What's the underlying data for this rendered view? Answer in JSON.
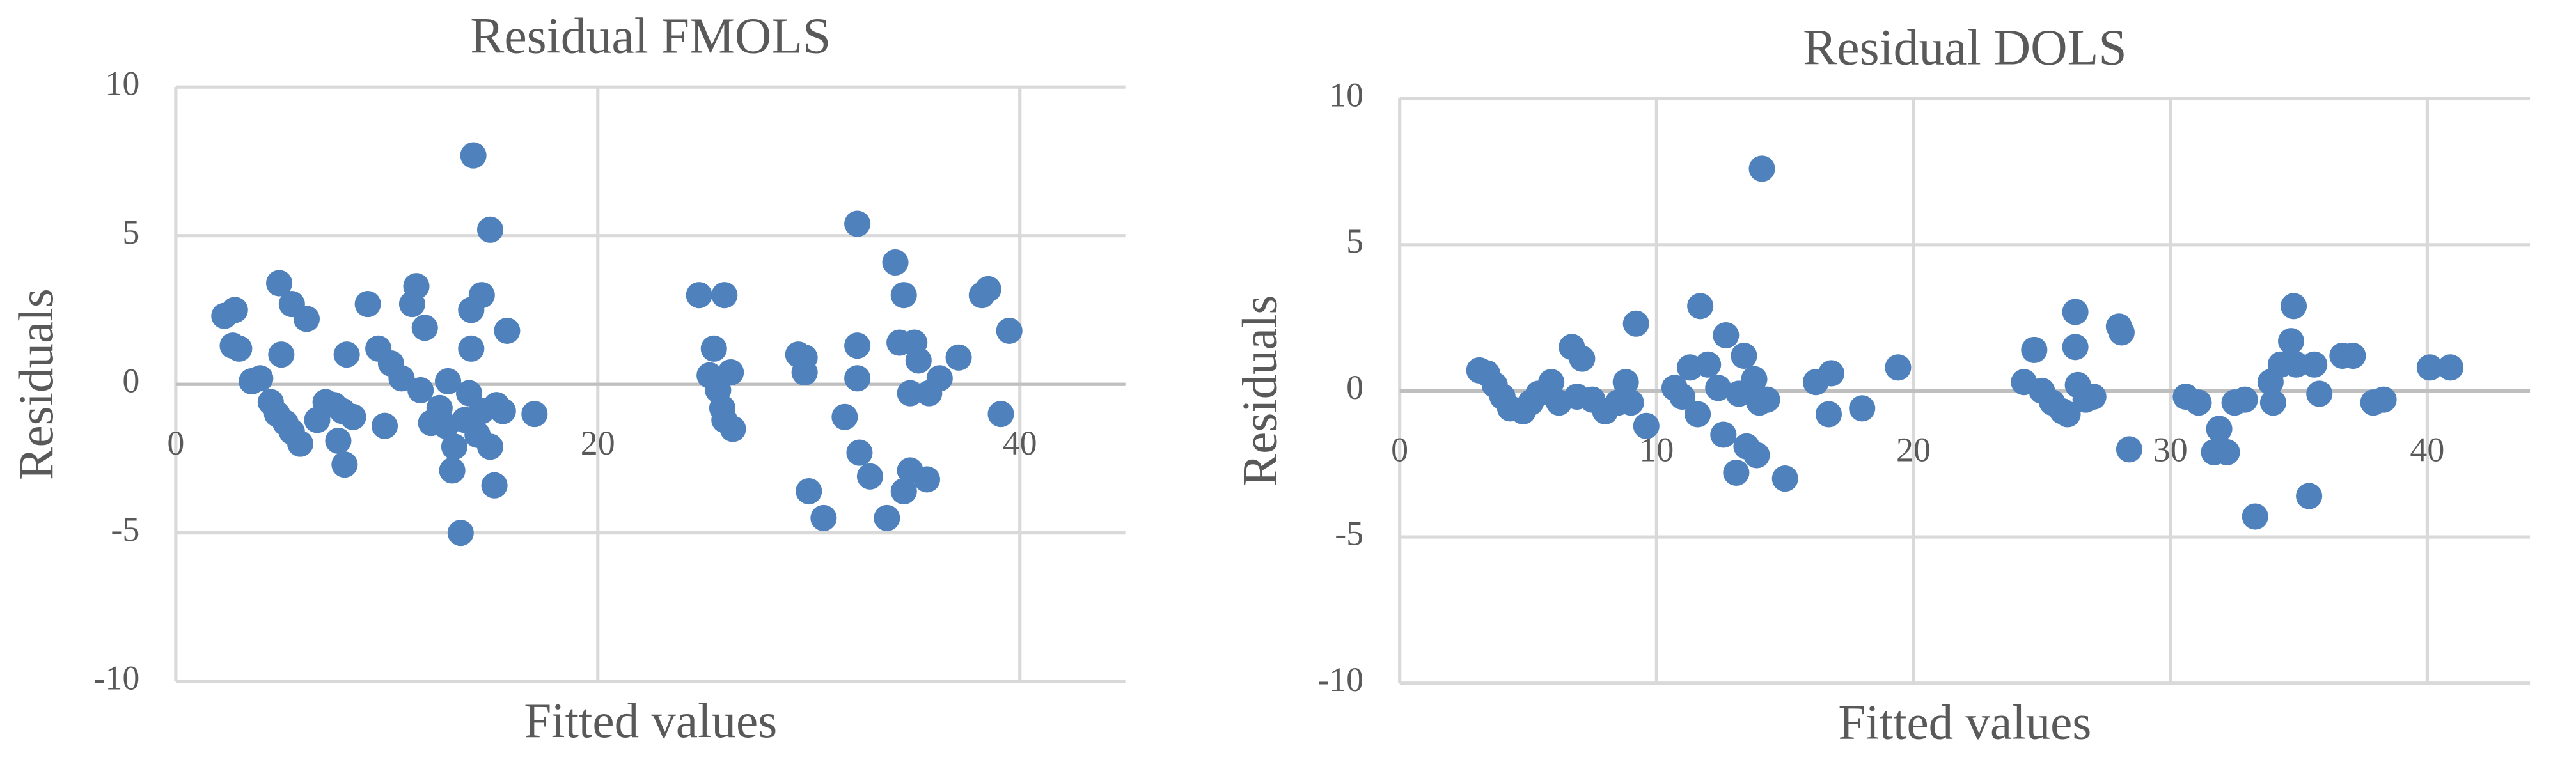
{
  "chart_data": [
    {
      "type": "scatter",
      "title": "Residual FMOLS",
      "xlabel": "Fitted values",
      "ylabel": "Residuals",
      "color": "#4f81bd",
      "xlim": [
        0,
        45
      ],
      "xticks": [
        0,
        20,
        40
      ],
      "ylim": [
        -10,
        10
      ],
      "yticks": [
        -10,
        -5,
        0,
        5,
        10
      ],
      "grid": true,
      "x": [
        2.3,
        2.8,
        2.7,
        3.0,
        3.6,
        4.0,
        4.5,
        4.9,
        5.0,
        4.8,
        5.2,
        5.5,
        5.5,
        5.9,
        6.2,
        6.7,
        7.1,
        7.5,
        7.9,
        7.7,
        8.0,
        8.1,
        8.4,
        9.1,
        9.6,
        9.9,
        10.2,
        10.7,
        11.2,
        11.4,
        11.8,
        11.6,
        12.1,
        12.5,
        12.9,
        12.8,
        13.1,
        13.2,
        13.5,
        13.7,
        13.9,
        14.0,
        14.0,
        14.1,
        14.5,
        14.3,
        14.5,
        14.9,
        14.9,
        15.1,
        15.2,
        15.7,
        15.5,
        17.0,
        24.8,
        26.0,
        25.5,
        25.3,
        25.7,
        25.9,
        26.0,
        26.4,
        26.3,
        29.5,
        29.8,
        29.8,
        30.0,
        30.7,
        31.7,
        32.3,
        32.3,
        32.3,
        32.4,
        32.9,
        33.7,
        34.1,
        34.3,
        34.5,
        34.5,
        34.8,
        35.0,
        34.8,
        35.2,
        35.6,
        35.7,
        36.2,
        37.1,
        38.2,
        38.5,
        39.1,
        39.5
      ],
      "values": [
        2.3,
        2.5,
        1.3,
        1.2,
        0.1,
        0.2,
        -0.6,
        3.4,
        1.0,
        -1.0,
        -1.3,
        2.7,
        -1.6,
        -2.0,
        2.2,
        -1.2,
        -0.6,
        -0.7,
        -0.9,
        -1.9,
        -2.7,
        1.0,
        -1.1,
        2.7,
        1.2,
        -1.4,
        0.7,
        0.2,
        2.7,
        3.3,
        1.9,
        -0.2,
        -1.3,
        -0.8,
        0.1,
        -1.4,
        -2.9,
        -2.1,
        -5.0,
        -1.2,
        -0.3,
        1.2,
        2.5,
        7.7,
        3.0,
        -1.7,
        -0.9,
        5.2,
        -2.1,
        -3.4,
        -0.7,
        1.8,
        -0.9,
        -1.0,
        3.0,
        3.0,
        1.2,
        0.3,
        -0.2,
        -0.8,
        -1.2,
        -1.5,
        0.4,
        1.0,
        0.9,
        0.4,
        -3.6,
        -4.5,
        -1.1,
        5.4,
        1.3,
        0.2,
        -2.3,
        -3.1,
        -4.5,
        4.1,
        1.4,
        3.0,
        -3.6,
        -2.9,
        1.4,
        -0.3,
        0.8,
        -3.2,
        -0.3,
        0.2,
        0.9,
        3.0,
        3.2,
        -1.0,
        1.8
      ]
    },
    {
      "type": "scatter",
      "title": "Residual DOLS",
      "xlabel": "Fitted values",
      "ylabel": "Residuals",
      "color": "#4f81bd",
      "xlim": [
        0,
        44
      ],
      "xticks": [
        0,
        10,
        20,
        30,
        40
      ],
      "ylim": [
        -10,
        10
      ],
      "yticks": [
        -10,
        -5,
        0,
        5,
        10
      ],
      "grid": true,
      "x": [
        3.1,
        3.4,
        3.7,
        4.0,
        4.3,
        4.8,
        5.1,
        5.4,
        5.9,
        6.2,
        6.7,
        6.9,
        7.1,
        7.5,
        8.0,
        8.5,
        8.8,
        9.0,
        9.2,
        9.6,
        10.7,
        11.0,
        11.3,
        11.7,
        11.6,
        12.0,
        12.4,
        12.7,
        12.6,
        13.1,
        13.2,
        13.4,
        13.5,
        13.8,
        13.9,
        14.0,
        14.1,
        14.3,
        15.0,
        16.2,
        16.8,
        16.7,
        18.0,
        19.4,
        24.3,
        24.7,
        25.0,
        25.4,
        25.8,
        26.0,
        26.3,
        26.3,
        26.4,
        26.7,
        27.0,
        28.0,
        28.1,
        28.4,
        30.6,
        31.1,
        31.7,
        31.9,
        32.2,
        32.5,
        32.9,
        33.3,
        33.9,
        34.0,
        34.3,
        34.8,
        34.7,
        34.9,
        35.4,
        35.6,
        35.8,
        36.7,
        37.1,
        37.9,
        38.3,
        40.1,
        40.9
      ],
      "values": [
        0.7,
        0.6,
        0.2,
        -0.2,
        -0.6,
        -0.7,
        -0.4,
        -0.1,
        0.3,
        -0.4,
        1.5,
        -0.2,
        1.1,
        -0.3,
        -0.7,
        -0.4,
        0.3,
        -0.4,
        2.3,
        -1.2,
        0.1,
        -0.2,
        0.8,
        2.9,
        -0.8,
        0.9,
        0.1,
        1.9,
        -1.5,
        -2.8,
        -0.1,
        1.2,
        -1.9,
        0.4,
        -2.2,
        -0.4,
        7.6,
        -0.3,
        -3.0,
        0.3,
        0.6,
        -0.8,
        -0.6,
        0.8,
        0.3,
        1.4,
        0.0,
        -0.4,
        -0.7,
        -0.8,
        2.7,
        1.5,
        0.2,
        -0.3,
        -0.2,
        2.2,
        2.0,
        -2.0,
        -0.2,
        -0.4,
        -2.1,
        -1.3,
        -2.1,
        -0.4,
        -0.3,
        -4.3,
        0.3,
        -0.4,
        0.9,
        2.9,
        1.7,
        0.9,
        -3.6,
        0.9,
        -0.1,
        1.2,
        1.2,
        -0.4,
        -0.3,
        0.8,
        0.8
      ]
    }
  ]
}
